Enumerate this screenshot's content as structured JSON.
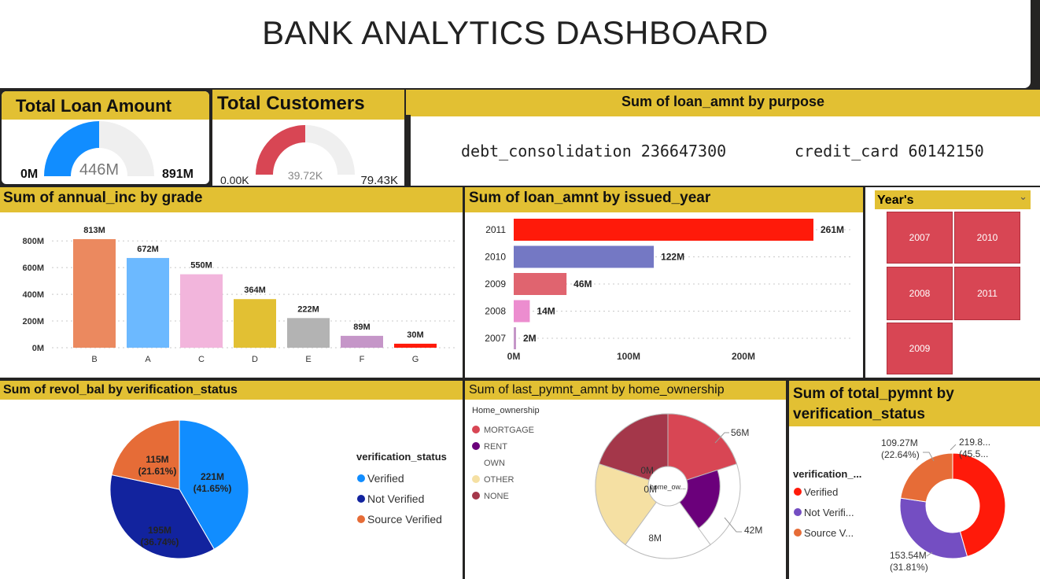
{
  "dashboard": {
    "title": "BANK ANALYTICS DASHBOARD"
  },
  "kpi_loan": {
    "title": "Total Loan Amount",
    "min": "0M",
    "value": "446M",
    "max": "891M",
    "fraction": 0.5,
    "color": "#118dff"
  },
  "kpi_customers": {
    "title": "Total Customers",
    "min": "0.00K",
    "value": "39.72K",
    "max": "79.43K",
    "fraction": 0.5,
    "color": "#d84654"
  },
  "purpose_card": {
    "title": "Sum of loan_amnt by purpose",
    "items": [
      {
        "purpose": "debt_consolidation",
        "amount": "236647300"
      },
      {
        "purpose": "credit_card",
        "amount": "60142150"
      }
    ]
  },
  "year_slicer": {
    "title": "Year's",
    "tiles": [
      "2007",
      "2010",
      "2008",
      "2011",
      "2009"
    ]
  },
  "home_legend": {
    "title": "Home_ownership",
    "items": [
      {
        "label": "MORTGAGE",
        "color": "#d84654"
      },
      {
        "label": "RENT",
        "color": "#6b007b"
      },
      {
        "label": "OWN",
        "color": "#ffffff"
      },
      {
        "label": "OTHER",
        "color": "#f5e0a3"
      },
      {
        "label": "NONE",
        "color": "#a4374a"
      }
    ]
  },
  "chart_data": [
    {
      "type": "bar",
      "title": "Sum of annual_inc by grade",
      "categories": [
        "B",
        "A",
        "C",
        "D",
        "E",
        "F",
        "G"
      ],
      "values": [
        813,
        672,
        550,
        364,
        222,
        89,
        30
      ],
      "labels": [
        "813M",
        "672M",
        "550M",
        "364M",
        "222M",
        "89M",
        "30M"
      ],
      "colors": [
        "#eb895f",
        "#6cb9ff",
        "#f2b5dc",
        "#e2c033",
        "#b3b3b3",
        "#c596c8",
        "#ff1a0a"
      ],
      "yticks": [
        "0M",
        "200M",
        "400M",
        "600M",
        "800M"
      ],
      "ylim": [
        0,
        813
      ]
    },
    {
      "type": "bar",
      "orientation": "horizontal",
      "title": "Sum of loan_amnt by issued_year",
      "categories": [
        "2011",
        "2010",
        "2009",
        "2008",
        "2007"
      ],
      "values": [
        261,
        122,
        46,
        14,
        2
      ],
      "labels": [
        "261M",
        "122M",
        "46M",
        "14M",
        "2M"
      ],
      "colors": [
        "#ff1a0a",
        "#7478c4",
        "#e0646f",
        "#ec8dcf",
        "#c596c8"
      ],
      "xticks": [
        "0M",
        "100M",
        "200M"
      ],
      "xlim": [
        0,
        261
      ]
    },
    {
      "type": "pie",
      "title": "Sum of revol_bal by verification_status",
      "legend_title": "verification_status",
      "slices": [
        {
          "name": "Verified",
          "value": 221,
          "label": "221M",
          "pct": "(41.65%)",
          "color": "#118dff"
        },
        {
          "name": "Not Verified",
          "value": 195,
          "label": "195M",
          "pct": "(36.74%)",
          "color": "#12239e"
        },
        {
          "name": "Source Verified",
          "value": 115,
          "label": "115M",
          "pct": "(21.61%)",
          "color": "#e66c37"
        }
      ]
    },
    {
      "type": "pie",
      "subtype": "rose",
      "title": "Sum of last_pymnt_amnt by home_ownership",
      "center_label": "home_ow...",
      "slices": [
        {
          "name": "MORTGAGE",
          "value": 56,
          "label": "56M",
          "color": "#d84654"
        },
        {
          "name": "RENT",
          "value": 42,
          "label": "42M",
          "color": "#6b007b"
        },
        {
          "name": "OWN",
          "value": 8,
          "label": "8M",
          "color": "#ffffff"
        },
        {
          "name": "OTHER",
          "value": 0,
          "label": "0M",
          "color": "#f5e0a3"
        },
        {
          "name": "NONE",
          "value": 0,
          "label": "0M",
          "color": "#a4374a"
        }
      ]
    },
    {
      "type": "pie",
      "subtype": "donut",
      "title": "Sum of total_pymnt by verification_status",
      "legend_title": "verification_...",
      "slices": [
        {
          "name": "Verified",
          "legend_label": "Verified",
          "value": 219.8,
          "label": "219.8...",
          "pct": "(45.5...",
          "color": "#ff1a0a"
        },
        {
          "name": "Not Verified",
          "legend_label": "Not Verifi...",
          "value": 153.54,
          "label": "153.54M",
          "pct": "(31.81%)",
          "color": "#744ec2"
        },
        {
          "name": "Source Verified",
          "legend_label": "Source V...",
          "value": 109.27,
          "label": "109.27M",
          "pct": "(22.64%)",
          "color": "#e66c37"
        }
      ]
    }
  ]
}
